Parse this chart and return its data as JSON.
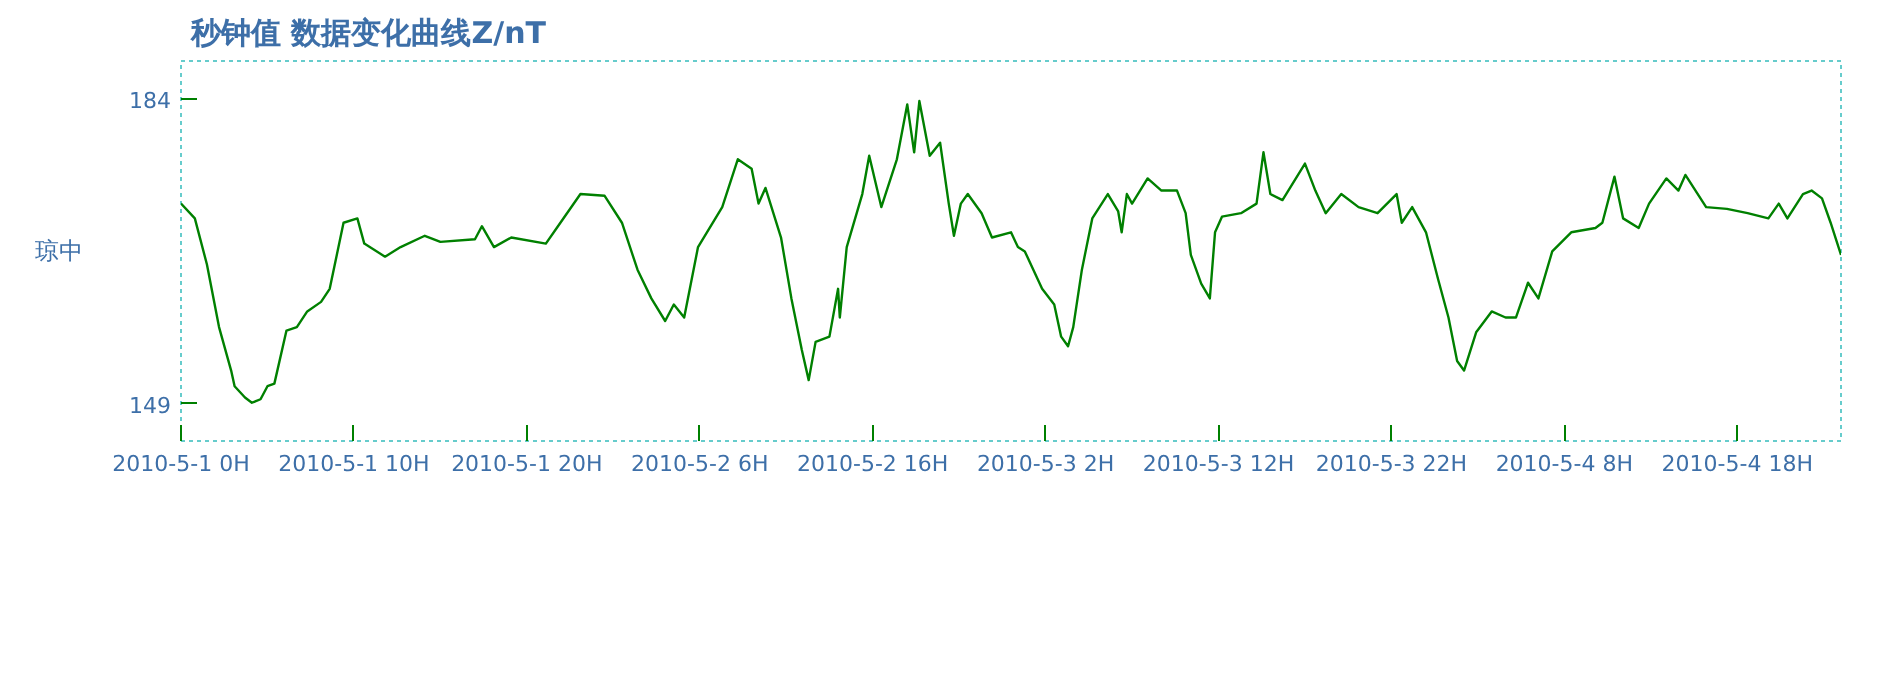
{
  "chart_data": {
    "type": "line",
    "title": "秒钟值  数据变化曲线Z/nT",
    "ylabel": "琼中",
    "x": [
      "2010-05-01T00:00",
      "2010-05-01T00:48",
      "2010-05-01T01:30",
      "2010-05-01T02:12",
      "2010-05-01T02:54",
      "2010-05-01T03:06",
      "2010-05-01T03:42",
      "2010-05-01T04:06",
      "2010-05-01T04:36",
      "2010-05-01T05:00",
      "2010-05-01T05:24",
      "2010-05-01T06:06",
      "2010-05-01T06:42",
      "2010-05-01T07:18",
      "2010-05-01T08:06",
      "2010-05-01T08:36",
      "2010-05-01T09:24",
      "2010-05-01T10:12",
      "2010-05-01T10:36",
      "2010-05-01T11:48",
      "2010-05-01T12:42",
      "2010-05-01T14:06",
      "2010-05-01T15:00",
      "2010-05-01T17:00",
      "2010-05-01T17:24",
      "2010-05-01T18:06",
      "2010-05-01T19:06",
      "2010-05-01T21:06",
      "2010-05-01T21:48",
      "2010-05-01T23:06",
      "2010-05-02T00:30",
      "2010-05-02T01:30",
      "2010-05-02T02:24",
      "2010-05-02T03:12",
      "2010-05-02T04:00",
      "2010-05-02T04:30",
      "2010-05-02T05:06",
      "2010-05-02T05:54",
      "2010-05-02T07:18",
      "2010-05-02T08:12",
      "2010-05-02T09:00",
      "2010-05-02T09:24",
      "2010-05-02T09:48",
      "2010-05-02T10:42",
      "2010-05-02T11:18",
      "2010-05-02T11:54",
      "2010-05-02T12:18",
      "2010-05-02T12:42",
      "2010-05-02T13:30",
      "2010-05-02T14:00",
      "2010-05-02T14:06",
      "2010-05-02T14:30",
      "2010-05-02T15:24",
      "2010-05-02T15:48",
      "2010-05-02T16:30",
      "2010-05-02T17:24",
      "2010-05-02T18:00",
      "2010-05-02T18:24",
      "2010-05-02T18:42",
      "2010-05-02T19:18",
      "2010-05-02T19:54",
      "2010-05-02T20:24",
      "2010-05-02T20:42",
      "2010-05-02T21:06",
      "2010-05-02T21:30",
      "2010-05-02T22:18",
      "2010-05-02T22:54",
      "2010-05-03T00:00",
      "2010-05-03T00:24",
      "2010-05-03T00:48",
      "2010-05-03T01:48",
      "2010-05-03T02:30",
      "2010-05-03T02:54",
      "2010-05-03T03:18",
      "2010-05-03T03:36",
      "2010-05-03T04:06",
      "2010-05-03T04:42",
      "2010-05-03T05:36",
      "2010-05-03T06:12",
      "2010-05-03T06:24",
      "2010-05-03T06:42",
      "2010-05-03T07:00",
      "2010-05-03T07:54",
      "2010-05-03T08:42",
      "2010-05-03T09:36",
      "2010-05-03T10:06",
      "2010-05-03T10:24",
      "2010-05-03T11:00",
      "2010-05-03T11:30",
      "2010-05-03T11:48",
      "2010-05-03T12:12",
      "2010-05-03T13:18",
      "2010-05-03T14:12",
      "2010-05-03T14:36",
      "2010-05-03T15:00",
      "2010-05-03T15:42",
      "2010-05-03T17:00",
      "2010-05-03T17:36",
      "2010-05-03T18:12",
      "2010-05-03T19:06",
      "2010-05-03T20:06",
      "2010-05-03T21:12",
      "2010-05-03T22:18",
      "2010-05-03T22:36",
      "2010-05-03T23:12",
      "2010-05-04T00:00",
      "2010-05-04T00:42",
      "2010-05-04T01:18",
      "2010-05-04T01:48",
      "2010-05-04T02:12",
      "2010-05-04T02:54",
      "2010-05-04T03:48",
      "2010-05-04T04:36",
      "2010-05-04T05:12",
      "2010-05-04T05:54",
      "2010-05-04T06:30",
      "2010-05-04T07:18",
      "2010-05-04T08:24",
      "2010-05-04T09:48",
      "2010-05-04T10:12",
      "2010-05-04T10:54",
      "2010-05-04T11:24",
      "2010-05-04T12:18",
      "2010-05-04T12:54",
      "2010-05-04T13:54",
      "2010-05-04T14:36",
      "2010-05-04T15:00",
      "2010-05-04T16:12",
      "2010-05-04T17:24",
      "2010-05-04T18:36",
      "2010-05-04T19:48",
      "2010-05-04T20:24",
      "2010-05-04T20:54",
      "2010-05-04T21:48",
      "2010-05-04T22:18",
      "2010-05-04T22:54",
      "2010-05-04T23:24",
      "2010-05-05T00:00"
    ],
    "series": [
      {
        "color": "#008000",
        "values": [
          172.0,
          170.3,
          165.0,
          157.8,
          152.8,
          151.0,
          149.7,
          149.1,
          149.5,
          151.0,
          151.3,
          157.4,
          157.8,
          159.6,
          160.7,
          162.2,
          169.8,
          170.3,
          167.4,
          165.9,
          167.0,
          168.3,
          167.6,
          167.9,
          169.4,
          167.0,
          168.1,
          167.4,
          169.4,
          173.1,
          172.9,
          169.8,
          164.4,
          161.1,
          158.5,
          160.4,
          158.9,
          167.0,
          171.6,
          177.1,
          176.0,
          172.0,
          173.8,
          168.1,
          161.1,
          155.2,
          151.7,
          156.1,
          156.7,
          162.2,
          158.9,
          167.0,
          173.1,
          177.5,
          171.6,
          177.1,
          183.4,
          177.9,
          183.8,
          177.5,
          179.0,
          172.0,
          168.3,
          172.0,
          173.1,
          170.9,
          168.1,
          168.7,
          167.0,
          166.5,
          162.2,
          160.4,
          156.7,
          155.6,
          157.8,
          164.4,
          170.3,
          173.1,
          171.1,
          168.7,
          173.1,
          172.0,
          174.9,
          173.5,
          173.5,
          170.9,
          166.1,
          162.8,
          161.1,
          168.7,
          170.5,
          170.9,
          172.0,
          177.9,
          173.1,
          172.4,
          176.6,
          173.5,
          170.9,
          173.1,
          171.6,
          170.9,
          173.1,
          169.8,
          171.6,
          168.7,
          163.3,
          158.9,
          153.9,
          152.8,
          157.2,
          159.6,
          158.9,
          158.9,
          162.9,
          161.1,
          166.5,
          168.7,
          169.2,
          169.8,
          175.1,
          170.3,
          169.2,
          172.0,
          174.9,
          173.5,
          175.3,
          171.6,
          171.4,
          170.9,
          170.3,
          172.0,
          170.3,
          173.1,
          173.5,
          172.6,
          169.8,
          166.1
        ]
      }
    ],
    "xlim": [
      "2010-05-01T00:00",
      "2010-05-05T00:00"
    ],
    "xticks": [
      {
        "value": "2010-05-01T00:00",
        "label": "2010-5-1 0H"
      },
      {
        "value": "2010-05-01T10:00",
        "label": "2010-5-1 10H"
      },
      {
        "value": "2010-05-01T20:00",
        "label": "2010-5-1 20H"
      },
      {
        "value": "2010-05-02T06:00",
        "label": "2010-5-2 6H"
      },
      {
        "value": "2010-05-02T16:00",
        "label": "2010-5-2 16H"
      },
      {
        "value": "2010-05-03T02:00",
        "label": "2010-5-3 2H"
      },
      {
        "value": "2010-05-03T12:00",
        "label": "2010-5-3 12H"
      },
      {
        "value": "2010-05-03T22:00",
        "label": "2010-5-3 22H"
      },
      {
        "value": "2010-05-04T08:00",
        "label": "2010-5-4 8H"
      },
      {
        "value": "2010-05-04T18:00",
        "label": "2010-5-4 18H"
      }
    ],
    "ylim": [
      144.7,
      188.4
    ],
    "yticks": [
      149,
      184
    ],
    "grid": false
  }
}
